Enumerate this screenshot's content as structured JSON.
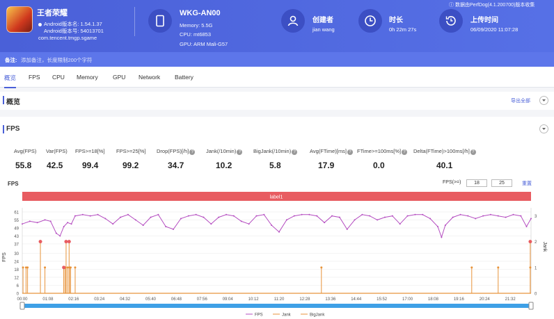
{
  "app": {
    "name": "王者荣耀",
    "android_version": "Android版本名: 1.54.1.37",
    "android_code": "Android版本号: 54013701",
    "package": "com.tencent.tmgp.sgame"
  },
  "device": {
    "name": "WKG-AN00",
    "memory": "Memory: 5.5G",
    "cpu": "CPU: mt6853",
    "gpu": "GPU: ARM Mali-G57"
  },
  "creator": {
    "title": "创建者",
    "value": "jian wang"
  },
  "duration": {
    "title": "时长",
    "value": "0h 22m 27s"
  },
  "upload": {
    "title": "上传时间",
    "value": "06/09/2020 11:07:28"
  },
  "perfdog_version": "数据由PerfDog(4.1.200700)版本收集",
  "note": {
    "label": "备注:",
    "placeholder": "添加备注，长度限制200个字符"
  },
  "tabs": [
    "概览",
    "FPS",
    "CPU",
    "Memory",
    "GPU",
    "Network",
    "Battery"
  ],
  "overview": {
    "title": "概览",
    "export_label": "导出全部"
  },
  "fps_section": {
    "title": "FPS"
  },
  "metrics": [
    {
      "label": "Avg(FPS)",
      "value": "55.8",
      "help": false
    },
    {
      "label": "Var(FPS)",
      "value": "42.5",
      "help": false
    },
    {
      "label": "FPS>=18[%]",
      "value": "99.4",
      "help": false
    },
    {
      "label": "FPS>=25[%]",
      "value": "99.2",
      "help": false
    },
    {
      "label": "Drop(FPS)[/h]",
      "value": "34.7",
      "help": true
    },
    {
      "label": "Jank(/10min)",
      "value": "10.2",
      "help": true
    },
    {
      "label": "BigJank(/10min)",
      "value": "5.8",
      "help": true
    },
    {
      "label": "Avg(FTime)[ms]",
      "value": "17.9",
      "help": true
    },
    {
      "label": "FTime>=100ms[%]",
      "value": "0.0",
      "help": true
    },
    {
      "label": "Delta(FTime)>100ms[/h]",
      "value": "40.1",
      "help": true
    }
  ],
  "chart_controls": {
    "title": "FPS",
    "threshold_label": "FPS(>=)",
    "threshold_1": "18",
    "threshold_2": "25",
    "reset_label": "重置",
    "label_bar": "label1",
    "left_axis_title": "FPS",
    "right_axis_title": "Jank"
  },
  "colors": {
    "accent": "#4a60d8",
    "fps": "#b44cc0",
    "jank": "#e8933a",
    "label_bar": "#e85c61",
    "scroll": "#3ea0e6"
  },
  "chart_data": {
    "type": "line",
    "x_ticks": [
      "00:00",
      "01:08",
      "02:16",
      "03:24",
      "04:32",
      "05:40",
      "06:48",
      "07:56",
      "09:04",
      "10:12",
      "11:20",
      "12:28",
      "13:36",
      "14:44",
      "15:52",
      "17:00",
      "18:08",
      "19:16",
      "20:24",
      "21:32"
    ],
    "y_left_ticks": [
      0,
      6,
      12,
      18,
      24,
      30,
      37,
      43,
      49,
      55,
      61
    ],
    "y_left_range": [
      0,
      62
    ],
    "y_right_ticks": [
      0,
      1,
      2,
      3
    ],
    "y_right_range": [
      0,
      3.2
    ],
    "x_range_seconds": [
      0,
      1347
    ],
    "legend": [
      "FPS",
      "Jank",
      "BigJank"
    ],
    "legend_position": "bottom",
    "series": [
      {
        "name": "FPS",
        "points": [
          [
            0,
            52
          ],
          [
            20,
            54
          ],
          [
            40,
            53
          ],
          [
            60,
            55
          ],
          [
            75,
            54
          ],
          [
            90,
            45
          ],
          [
            100,
            43
          ],
          [
            110,
            50
          ],
          [
            120,
            53
          ],
          [
            130,
            52
          ],
          [
            140,
            58
          ],
          [
            160,
            59
          ],
          [
            180,
            58
          ],
          [
            200,
            59
          ],
          [
            220,
            56
          ],
          [
            240,
            52
          ],
          [
            260,
            57
          ],
          [
            280,
            59
          ],
          [
            300,
            55
          ],
          [
            320,
            51
          ],
          [
            340,
            57
          ],
          [
            360,
            59
          ],
          [
            380,
            50
          ],
          [
            400,
            48
          ],
          [
            420,
            56
          ],
          [
            440,
            58
          ],
          [
            460,
            59
          ],
          [
            480,
            57
          ],
          [
            500,
            52
          ],
          [
            520,
            57
          ],
          [
            540,
            59
          ],
          [
            560,
            58
          ],
          [
            580,
            54
          ],
          [
            600,
            52
          ],
          [
            620,
            58
          ],
          [
            640,
            59
          ],
          [
            660,
            51
          ],
          [
            680,
            46
          ],
          [
            700,
            55
          ],
          [
            720,
            58
          ],
          [
            740,
            59
          ],
          [
            760,
            59
          ],
          [
            780,
            58
          ],
          [
            800,
            53
          ],
          [
            820,
            58
          ],
          [
            840,
            57
          ],
          [
            860,
            48
          ],
          [
            880,
            55
          ],
          [
            900,
            59
          ],
          [
            920,
            58
          ],
          [
            940,
            55
          ],
          [
            960,
            57
          ],
          [
            980,
            58
          ],
          [
            1000,
            52
          ],
          [
            1020,
            58
          ],
          [
            1040,
            59
          ],
          [
            1060,
            59
          ],
          [
            1080,
            56
          ],
          [
            1100,
            50
          ],
          [
            1110,
            42
          ],
          [
            1120,
            51
          ],
          [
            1140,
            57
          ],
          [
            1160,
            59
          ],
          [
            1180,
            58
          ],
          [
            1200,
            56
          ],
          [
            1220,
            58
          ],
          [
            1240,
            59
          ],
          [
            1260,
            58
          ],
          [
            1280,
            57
          ],
          [
            1300,
            59
          ],
          [
            1320,
            58
          ],
          [
            1335,
            50
          ],
          [
            1347,
            56
          ]
        ]
      },
      {
        "name": "Jank",
        "events": [
          [
            2,
            1
          ],
          [
            10,
            1
          ],
          [
            14,
            1
          ],
          [
            60,
            1
          ],
          [
            110,
            1
          ],
          [
            114,
            1
          ],
          [
            120,
            1
          ],
          [
            125,
            1
          ],
          [
            128,
            1
          ],
          [
            140,
            1
          ],
          [
            792,
            1
          ],
          [
            1190,
            1
          ],
          [
            1260,
            1
          ],
          [
            1345,
            1
          ]
        ]
      },
      {
        "name": "BigJank",
        "events": [
          [
            48,
            2
          ],
          [
            110,
            1
          ],
          [
            116,
            2
          ],
          [
            124,
            2
          ],
          [
            1345,
            2
          ]
        ]
      }
    ]
  }
}
